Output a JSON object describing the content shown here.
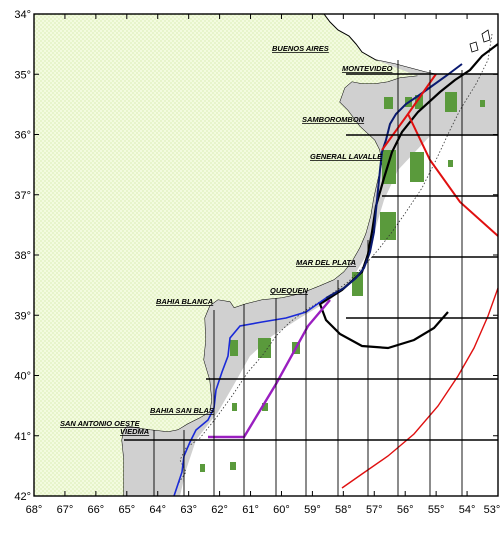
{
  "map": {
    "lon_ticks": [
      "68°",
      "67°",
      "66°",
      "65°",
      "64°",
      "63°",
      "62°",
      "61°",
      "60°",
      "59°",
      "58°",
      "57°",
      "56°",
      "55°",
      "54°",
      "53°"
    ],
    "lat_ticks": [
      "34°",
      "35°",
      "36°",
      "37°",
      "38°",
      "39°",
      "40°",
      "41°",
      "42°"
    ],
    "place_labels": [
      {
        "id": "buenos-aires",
        "text": "BUENOS AIRES"
      },
      {
        "id": "montevideo",
        "text": "MONTEVIDEO"
      },
      {
        "id": "samborombon",
        "text": "SAMBOROMBON"
      },
      {
        "id": "general-lavalle",
        "text": "GENERAL LAVALLE"
      },
      {
        "id": "mar-del-plata",
        "text": "MAR DEL PLATA"
      },
      {
        "id": "quequen",
        "text": "QUEQUEN"
      },
      {
        "id": "bahia-blanca",
        "text": "BAHIA BLANCA"
      },
      {
        "id": "bahia-san-blas",
        "text": "BAHIA SAN BLAS"
      },
      {
        "id": "san-antonio-oeste",
        "text": "SAN ANTONIO OESTE"
      },
      {
        "id": "viedma",
        "text": "VIEDMA"
      }
    ],
    "colors": {
      "land": "#f1fbd9",
      "shelf": "#d0d0d0",
      "patch": "#5a9a3c",
      "red_line": "#e01010",
      "blue_line": "#1a2ad8",
      "navy_line": "#0a1a70",
      "purple_line": "#9a1fc0",
      "black_line": "#000000",
      "grid": "#000000"
    }
  }
}
